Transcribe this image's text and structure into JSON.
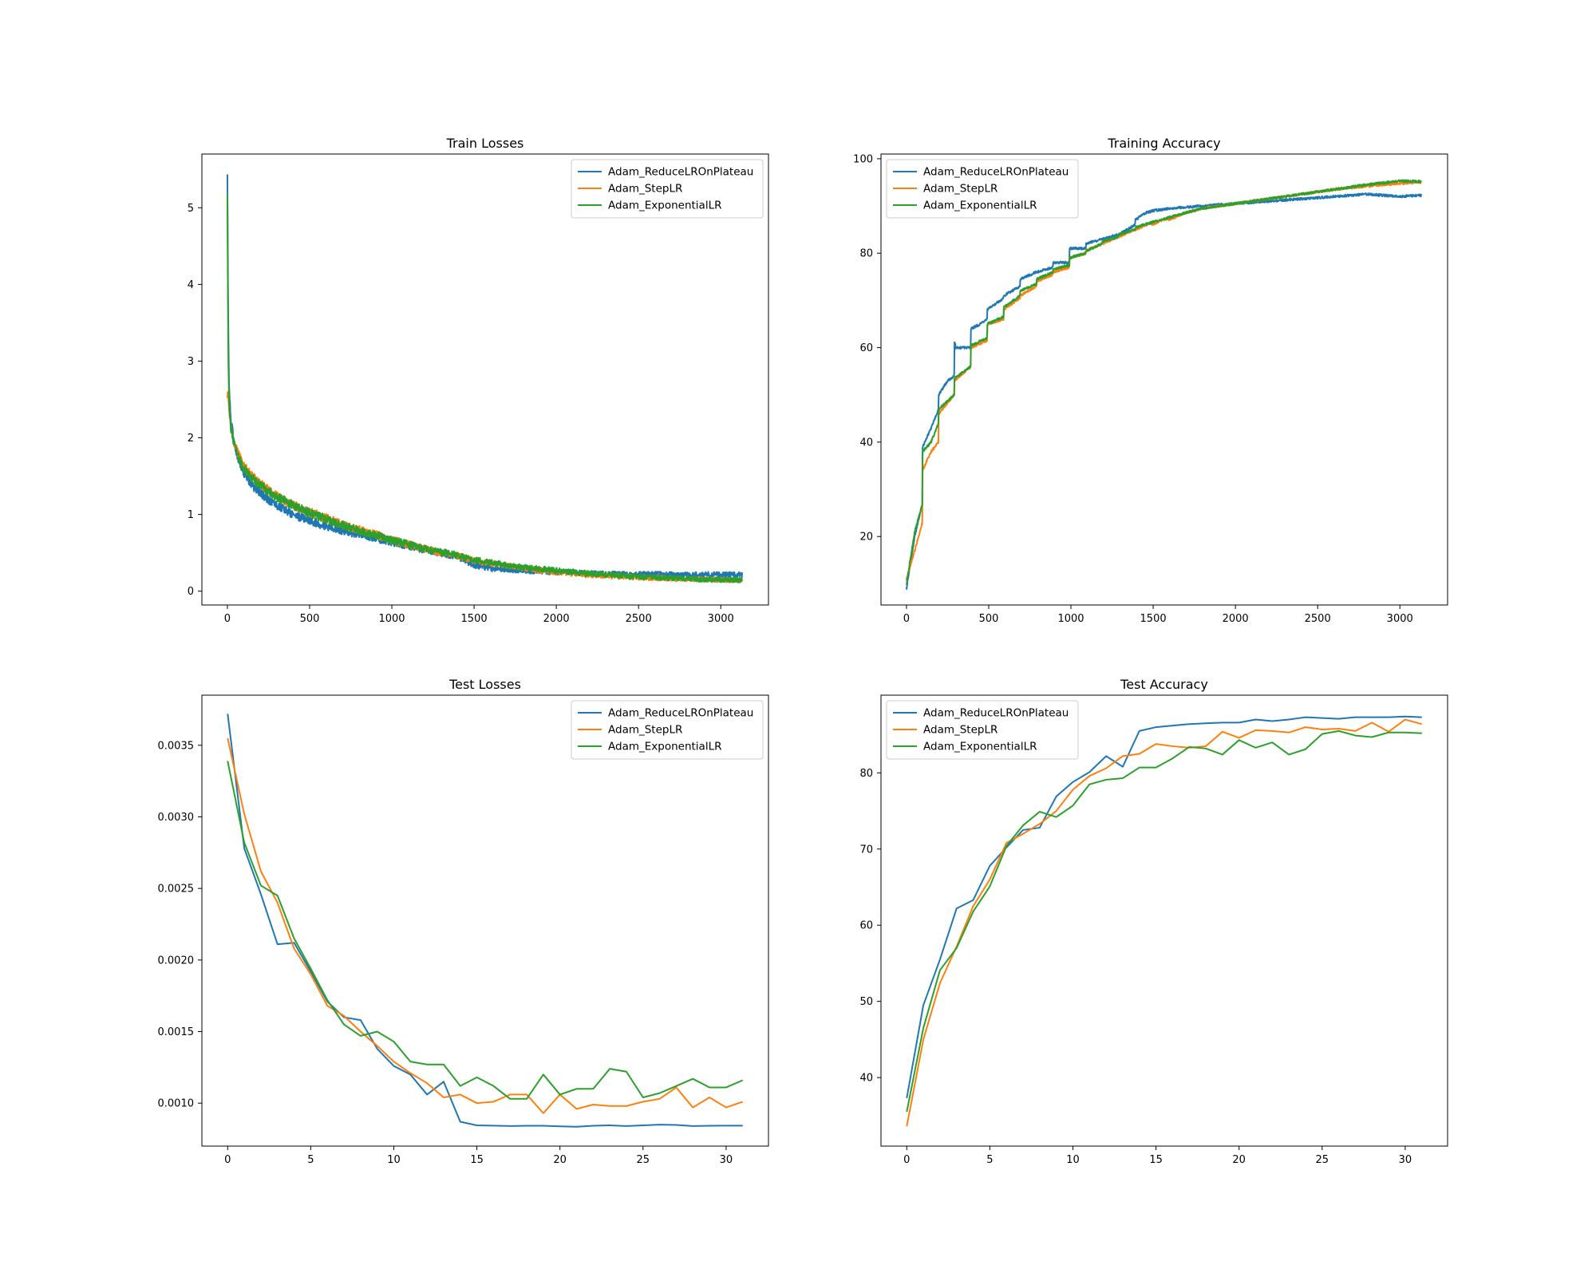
{
  "colors": {
    "Adam_ReduceLROnPlateau": "#1f77b4",
    "Adam_StepLR": "#ff7f0e",
    "Adam_ExponentialLR": "#2ca02c"
  },
  "chart_data": [
    {
      "type": "line",
      "title": "Train Losses",
      "xlim": [
        -155,
        3290
      ],
      "ylim": [
        -0.18,
        5.7
      ],
      "xticks": [
        0,
        500,
        1000,
        1500,
        2000,
        2500,
        3000
      ],
      "yticks": [
        0,
        1,
        2,
        3,
        4,
        5
      ],
      "legend": "top-right",
      "grid": false,
      "series": [
        {
          "name": "Adam_ReduceLROnPlateau",
          "noise": 0.05,
          "x": [
            0,
            5,
            10,
            20,
            40,
            60,
            80,
            100,
            150,
            200,
            250,
            300,
            400,
            500,
            600,
            700,
            800,
            900,
            1000,
            1200,
            1400,
            1500,
            1600,
            1800,
            2000,
            2200,
            2400,
            2600,
            2800,
            3000,
            3130
          ],
          "y": [
            5.42,
            3.5,
            2.7,
            2.25,
            1.95,
            1.78,
            1.65,
            1.55,
            1.38,
            1.28,
            1.2,
            1.12,
            1.0,
            0.92,
            0.85,
            0.79,
            0.74,
            0.69,
            0.64,
            0.54,
            0.45,
            0.34,
            0.3,
            0.27,
            0.25,
            0.23,
            0.22,
            0.22,
            0.21,
            0.22,
            0.21
          ]
        },
        {
          "name": "Adam_StepLR",
          "noise": 0.05,
          "x": [
            0,
            5,
            10,
            20,
            40,
            60,
            80,
            100,
            150,
            200,
            250,
            300,
            400,
            500,
            600,
            700,
            800,
            900,
            1000,
            1200,
            1400,
            1500,
            1600,
            1800,
            2000,
            2200,
            2400,
            2600,
            2800,
            3000,
            3130
          ],
          "y": [
            2.5,
            2.6,
            2.4,
            2.15,
            1.95,
            1.82,
            1.72,
            1.63,
            1.5,
            1.4,
            1.32,
            1.24,
            1.12,
            1.03,
            0.95,
            0.87,
            0.8,
            0.74,
            0.67,
            0.55,
            0.46,
            0.4,
            0.36,
            0.3,
            0.25,
            0.21,
            0.19,
            0.17,
            0.16,
            0.15,
            0.14
          ]
        },
        {
          "name": "Adam_ExponentialLR",
          "noise": 0.05,
          "x": [
            0,
            5,
            10,
            20,
            40,
            60,
            80,
            100,
            150,
            200,
            250,
            300,
            400,
            500,
            600,
            700,
            800,
            900,
            1000,
            1200,
            1400,
            1500,
            1600,
            1800,
            2000,
            2200,
            2400,
            2600,
            2800,
            3000,
            3130
          ],
          "y": [
            5.15,
            3.1,
            2.5,
            2.15,
            1.92,
            1.78,
            1.68,
            1.6,
            1.47,
            1.38,
            1.3,
            1.23,
            1.12,
            1.02,
            0.94,
            0.86,
            0.79,
            0.73,
            0.67,
            0.55,
            0.47,
            0.41,
            0.37,
            0.31,
            0.27,
            0.23,
            0.2,
            0.18,
            0.16,
            0.15,
            0.15
          ]
        }
      ]
    },
    {
      "type": "line",
      "title": "Training Accuracy",
      "xlim": [
        -155,
        3290
      ],
      "ylim": [
        5.5,
        101
      ],
      "xticks": [
        0,
        500,
        1000,
        1500,
        2000,
        2500,
        3000
      ],
      "yticks": [
        20,
        40,
        60,
        80,
        100
      ],
      "legend": "top-left",
      "grid": false,
      "series": [
        {
          "name": "Adam_ReduceLROnPlateau",
          "noise": 0.25,
          "x": [
            0,
            50,
            97,
            98,
            150,
            195,
            196,
            250,
            290,
            291,
            300,
            390,
            391,
            450,
            490,
            491,
            590,
            591,
            690,
            691,
            790,
            791,
            890,
            891,
            990,
            991,
            1090,
            1091,
            1190,
            1191,
            1290,
            1291,
            1390,
            1391,
            1450,
            1500,
            1600,
            1800,
            2000,
            2200,
            2400,
            2600,
            2800,
            3000,
            3130
          ],
          "y": [
            9,
            20,
            27,
            39,
            43,
            47,
            50,
            53,
            54,
            61.5,
            60,
            60,
            64,
            65,
            66,
            68,
            70.5,
            71,
            73,
            74.5,
            76,
            76,
            77,
            78,
            78,
            81,
            81,
            82,
            83,
            83,
            84,
            84,
            86,
            87,
            88.5,
            89,
            89.5,
            90,
            90.5,
            91,
            91.5,
            92,
            92.5,
            92,
            92.3
          ]
        },
        {
          "name": "Adam_StepLR",
          "noise": 0.25,
          "x": [
            0,
            50,
            97,
            98,
            150,
            195,
            196,
            290,
            291,
            390,
            391,
            490,
            491,
            590,
            591,
            690,
            691,
            790,
            791,
            890,
            891,
            990,
            991,
            1090,
            1091,
            1190,
            1191,
            1290,
            1291,
            1390,
            1391,
            1490,
            1491,
            1590,
            1591,
            1690,
            1691,
            1800,
            2000,
            2200,
            2400,
            2600,
            2800,
            3000,
            3130
          ],
          "y": [
            11,
            17,
            23,
            34,
            38,
            40,
            46,
            50,
            53,
            56,
            60,
            61.5,
            65,
            66,
            68,
            70.5,
            71,
            73,
            74,
            75.5,
            76,
            77,
            79,
            80,
            80.5,
            82,
            82,
            83.5,
            83.5,
            85,
            85,
            86.5,
            86,
            87.5,
            87,
            88.5,
            88.5,
            89.5,
            90.5,
            91.5,
            92.5,
            93.5,
            94.2,
            94.8,
            95
          ]
        },
        {
          "name": "Adam_ExponentialLR",
          "noise": 0.25,
          "x": [
            0,
            50,
            97,
            98,
            150,
            195,
            196,
            290,
            291,
            390,
            391,
            490,
            491,
            590,
            591,
            690,
            691,
            790,
            791,
            890,
            891,
            990,
            991,
            1090,
            1091,
            1190,
            1191,
            1290,
            1291,
            1390,
            1391,
            1490,
            1491,
            1590,
            1591,
            1690,
            1691,
            1800,
            2000,
            2200,
            2400,
            2600,
            2800,
            3000,
            3130
          ],
          "y": [
            10,
            21,
            27,
            38,
            40,
            44,
            47,
            50,
            53.5,
            56,
            60.5,
            62,
            65,
            66.5,
            68.5,
            71,
            72,
            73.5,
            74.5,
            76,
            76.5,
            77.5,
            79,
            80,
            80.5,
            82,
            82.5,
            83.5,
            84,
            85,
            85.5,
            86.5,
            86.5,
            87.5,
            87.5,
            88.5,
            88.5,
            89.5,
            90.5,
            91.5,
            92.5,
            93.5,
            94.5,
            95.3,
            95.2
          ]
        }
      ]
    },
    {
      "type": "line",
      "title": "Test Losses",
      "xlim": [
        -1.55,
        32.55
      ],
      "ylim": [
        0.0007,
        0.00385
      ],
      "xticks": [
        0,
        5,
        10,
        15,
        20,
        25,
        30
      ],
      "yticks": [
        0.001,
        0.0015,
        0.002,
        0.0025,
        0.003,
        0.0035
      ],
      "ytick_labels": [
        "0.0010",
        "0.0015",
        "0.0020",
        "0.0025",
        "0.0030",
        "0.0035"
      ],
      "legend": "top-right",
      "grid": false,
      "series": [
        {
          "name": "Adam_ReduceLROnPlateau",
          "x": [
            0,
            1,
            2,
            3,
            4,
            5,
            6,
            7,
            8,
            9,
            10,
            11,
            12,
            13,
            14,
            15,
            16,
            17,
            18,
            19,
            20,
            21,
            22,
            23,
            24,
            25,
            26,
            27,
            28,
            29,
            30,
            31
          ],
          "y": [
            0.00372,
            0.00278,
            0.00246,
            0.00211,
            0.00212,
            0.00192,
            0.00171,
            0.0016,
            0.00158,
            0.00138,
            0.00126,
            0.0012,
            0.00106,
            0.00115,
            0.00087,
            0.000845,
            0.000843,
            0.00084,
            0.000842,
            0.000842,
            0.000838,
            0.000835,
            0.000842,
            0.000845,
            0.00084,
            0.000845,
            0.00085,
            0.000848,
            0.00084,
            0.000842,
            0.000843,
            0.000843
          ]
        },
        {
          "name": "Adam_StepLR",
          "x": [
            0,
            1,
            2,
            3,
            4,
            5,
            6,
            7,
            8,
            9,
            10,
            11,
            12,
            13,
            14,
            15,
            16,
            17,
            18,
            19,
            20,
            21,
            22,
            23,
            24,
            25,
            26,
            27,
            28,
            29,
            30,
            31
          ],
          "y": [
            0.00355,
            0.00302,
            0.00262,
            0.0024,
            0.00208,
            0.0019,
            0.00168,
            0.00161,
            0.0015,
            0.0014,
            0.00129,
            0.00121,
            0.00114,
            0.00104,
            0.00106,
            0.001,
            0.00101,
            0.00106,
            0.00106,
            0.00093,
            0.00106,
            0.00096,
            0.00099,
            0.00098,
            0.00098,
            0.00101,
            0.00103,
            0.00111,
            0.00097,
            0.00104,
            0.00097,
            0.00101
          ]
        },
        {
          "name": "Adam_ExponentialLR",
          "x": [
            0,
            1,
            2,
            3,
            4,
            5,
            6,
            7,
            8,
            9,
            10,
            11,
            12,
            13,
            14,
            15,
            16,
            17,
            18,
            19,
            20,
            21,
            22,
            23,
            24,
            25,
            26,
            27,
            28,
            29,
            30,
            31
          ],
          "y": [
            0.00339,
            0.00282,
            0.00252,
            0.00245,
            0.00215,
            0.00194,
            0.00172,
            0.00155,
            0.00147,
            0.0015,
            0.00143,
            0.00129,
            0.00127,
            0.00127,
            0.00112,
            0.00118,
            0.00112,
            0.00103,
            0.00103,
            0.0012,
            0.00106,
            0.0011,
            0.0011,
            0.00124,
            0.00122,
            0.00104,
            0.00107,
            0.00112,
            0.00117,
            0.00111,
            0.00111,
            0.00116
          ]
        }
      ]
    },
    {
      "type": "line",
      "title": "Test Accuracy",
      "xlim": [
        -1.55,
        32.55
      ],
      "ylim": [
        31,
        90.2
      ],
      "xticks": [
        0,
        5,
        10,
        15,
        20,
        25,
        30
      ],
      "yticks": [
        40,
        50,
        60,
        70,
        80
      ],
      "legend": "top-left",
      "grid": false,
      "series": [
        {
          "name": "Adam_ReduceLROnPlateau",
          "x": [
            0,
            1,
            2,
            3,
            4,
            5,
            6,
            7,
            8,
            9,
            10,
            11,
            12,
            13,
            14,
            15,
            16,
            17,
            18,
            19,
            20,
            21,
            22,
            23,
            24,
            25,
            26,
            27,
            28,
            29,
            30,
            31
          ],
          "y": [
            37.3,
            49.5,
            55.5,
            62.2,
            63.3,
            67.8,
            70.2,
            72.5,
            72.8,
            76.9,
            78.8,
            80.1,
            82.2,
            80.8,
            85.5,
            86.0,
            86.2,
            86.4,
            86.5,
            86.6,
            86.6,
            87.0,
            86.8,
            87.0,
            87.3,
            87.2,
            87.1,
            87.3,
            87.3,
            87.3,
            87.4,
            87.3
          ]
        },
        {
          "name": "Adam_StepLR",
          "x": [
            0,
            1,
            2,
            3,
            4,
            5,
            6,
            7,
            8,
            9,
            10,
            11,
            12,
            13,
            14,
            15,
            16,
            17,
            18,
            19,
            20,
            21,
            22,
            23,
            24,
            25,
            26,
            27,
            28,
            29,
            30,
            31
          ],
          "y": [
            33.6,
            45.0,
            52.4,
            57.2,
            62.5,
            66.0,
            70.8,
            72.0,
            73.3,
            75.0,
            77.8,
            79.6,
            80.6,
            82.2,
            82.5,
            83.8,
            83.5,
            83.3,
            83.5,
            85.4,
            84.6,
            85.6,
            85.5,
            85.3,
            86.0,
            85.7,
            85.8,
            85.5,
            86.6,
            85.4,
            87.0,
            86.4
          ]
        },
        {
          "name": "Adam_ExponentialLR",
          "x": [
            0,
            1,
            2,
            3,
            4,
            5,
            6,
            7,
            8,
            9,
            10,
            11,
            12,
            13,
            14,
            15,
            16,
            17,
            18,
            19,
            20,
            21,
            22,
            23,
            24,
            25,
            26,
            27,
            28,
            29,
            30,
            31
          ],
          "y": [
            35.5,
            46.5,
            54.1,
            57.0,
            61.8,
            65.1,
            70.4,
            73.1,
            74.9,
            74.2,
            75.7,
            78.5,
            79.1,
            79.3,
            80.7,
            80.7,
            81.9,
            83.4,
            83.2,
            82.4,
            84.3,
            83.3,
            84.0,
            82.4,
            83.1,
            85.1,
            85.5,
            84.9,
            84.7,
            85.3,
            85.3,
            85.2
          ]
        }
      ]
    }
  ]
}
